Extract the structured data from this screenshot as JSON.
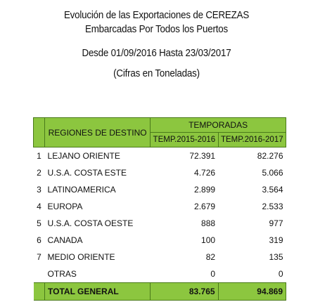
{
  "header": {
    "title_line1": "Evolución de las Exportaciones de CEREZAS",
    "title_line2": "Embarcadas Por Todos los Puertos",
    "date_range": "Desde 01/09/2016 Hasta 23/03/2017",
    "units": "(Cifras en Toneladas)"
  },
  "table": {
    "regions_header": "REGIONES DE DESTINO",
    "seasons_group_header": "TEMPORADAS",
    "season_headers": [
      "TEMP.2015-2016",
      "TEMP.2016-2017"
    ],
    "rows": [
      {
        "num": "1",
        "region": "LEJANO ORIENTE",
        "v1": "72.391",
        "v2": "82.276"
      },
      {
        "num": "2",
        "region": "U.S.A. COSTA ESTE",
        "v1": "4.726",
        "v2": "5.066"
      },
      {
        "num": "3",
        "region": "LATINOAMERICA",
        "v1": "2.899",
        "v2": "3.564"
      },
      {
        "num": "4",
        "region": "EUROPA",
        "v1": "2.679",
        "v2": "2.533"
      },
      {
        "num": "5",
        "region": "U.S.A. COSTA OESTE",
        "v1": "888",
        "v2": "977"
      },
      {
        "num": "6",
        "region": "CANADA",
        "v1": "100",
        "v2": "319"
      },
      {
        "num": "7",
        "region": "MEDIO ORIENTE",
        "v1": "82",
        "v2": "135"
      },
      {
        "num": "",
        "region": "OTRAS",
        "v1": "0",
        "v2": "0"
      }
    ],
    "total": {
      "label": "TOTAL GENERAL",
      "v1": "83.765",
      "v2": "94.869"
    }
  },
  "colors": {
    "header_green": "#8cc63f",
    "border_green": "#4a7a1a"
  }
}
